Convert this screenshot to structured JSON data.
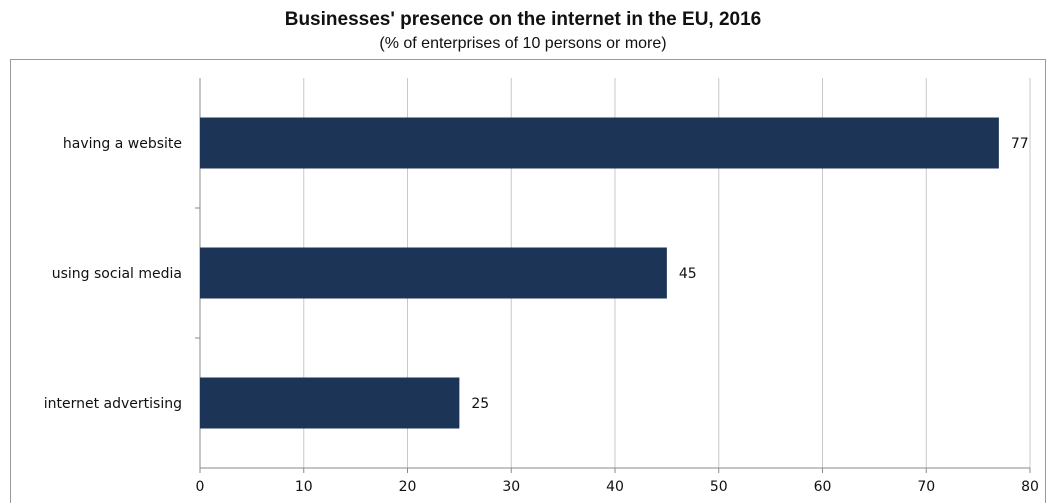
{
  "chart_data": {
    "type": "bar",
    "orientation": "horizontal",
    "title": "Businesses' presence on the internet in the EU, 2016",
    "subtitle": "(% of enterprises of 10 persons or more)",
    "categories": [
      "having a website",
      "using social media",
      "internet advertising"
    ],
    "values": [
      77,
      45,
      25
    ],
    "xlim": [
      0,
      80
    ],
    "xticks": [
      0,
      10,
      20,
      30,
      40,
      50,
      60,
      70,
      80
    ],
    "grid": "vertical",
    "legend": "none",
    "bar_color": "#1c3557",
    "grid_color": "#c8c8c8"
  }
}
